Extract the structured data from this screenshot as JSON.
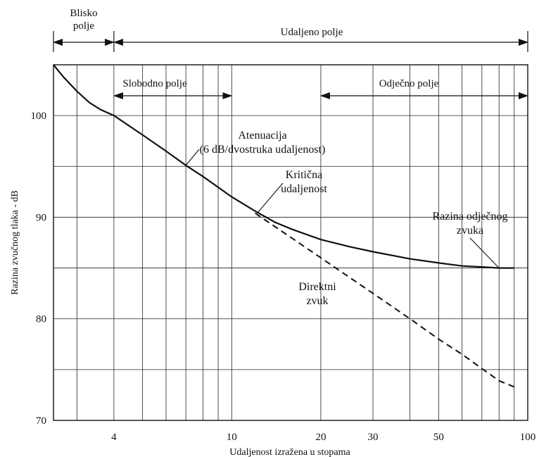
{
  "chart_data": {
    "type": "line",
    "xlabel": "Udaljenost izražena u stopama",
    "ylabel": "Razina zvučnog tlaka - dB",
    "x_scale": "log",
    "xlim": [
      2.5,
      100
    ],
    "ylim": [
      70,
      105
    ],
    "x_ticks": [
      {
        "value": 4,
        "label": "4"
      },
      {
        "value": 10,
        "label": "10"
      },
      {
        "value": 20,
        "label": "20"
      },
      {
        "value": 30,
        "label": "30"
      },
      {
        "value": 50,
        "label": "50"
      },
      {
        "value": 100,
        "label": "100"
      }
    ],
    "y_ticks": [
      {
        "value": 70,
        "label": "70"
      },
      {
        "value": 80,
        "label": "80"
      },
      {
        "value": 90,
        "label": "90"
      },
      {
        "value": 100,
        "label": "100"
      }
    ],
    "grid": true,
    "series": [
      {
        "style": "solid",
        "x": [
          2.5,
          2.7,
          3,
          3.3,
          3.6,
          4,
          5,
          6,
          7,
          8,
          10,
          12,
          14,
          16,
          20,
          25,
          30,
          40,
          50,
          60,
          70,
          80,
          90
        ],
        "y": [
          105,
          103.8,
          102.4,
          101.3,
          100.6,
          100,
          98.1,
          96.5,
          95.1,
          94,
          92,
          90.6,
          89.5,
          88.8,
          87.8,
          87.1,
          86.6,
          85.9,
          85.5,
          85.2,
          85.1,
          85,
          85
        ]
      },
      {
        "style": "dashed",
        "x": [
          12,
          20,
          30,
          40,
          50,
          60,
          70,
          80,
          90
        ],
        "y": [
          90.4,
          86.0,
          82.5,
          80.0,
          78.0,
          76.5,
          75.1,
          73.9,
          73.3
        ]
      }
    ],
    "regions": [
      {
        "label": "Blisko\npolje",
        "from": 2.5,
        "to": 4
      },
      {
        "label": "Udaljeno polje",
        "from": 4,
        "to": 100
      },
      {
        "label": "Slobodno polje",
        "from": 4,
        "to": 10
      },
      {
        "label": "Odječno polje",
        "from": 20,
        "to": 100
      }
    ],
    "annotations": [
      {
        "text": "Atenuacija\n(6 dB/dvostruka udaljenost)",
        "x": 7,
        "y": 95.1
      },
      {
        "text": "Kritična\nudaljenost",
        "x": 12.2,
        "y": 90.4
      },
      {
        "text": "Razina odječnog\nzvuka",
        "x": 80,
        "y": 85
      },
      {
        "text": "Direktni\nzvuk"
      }
    ]
  }
}
